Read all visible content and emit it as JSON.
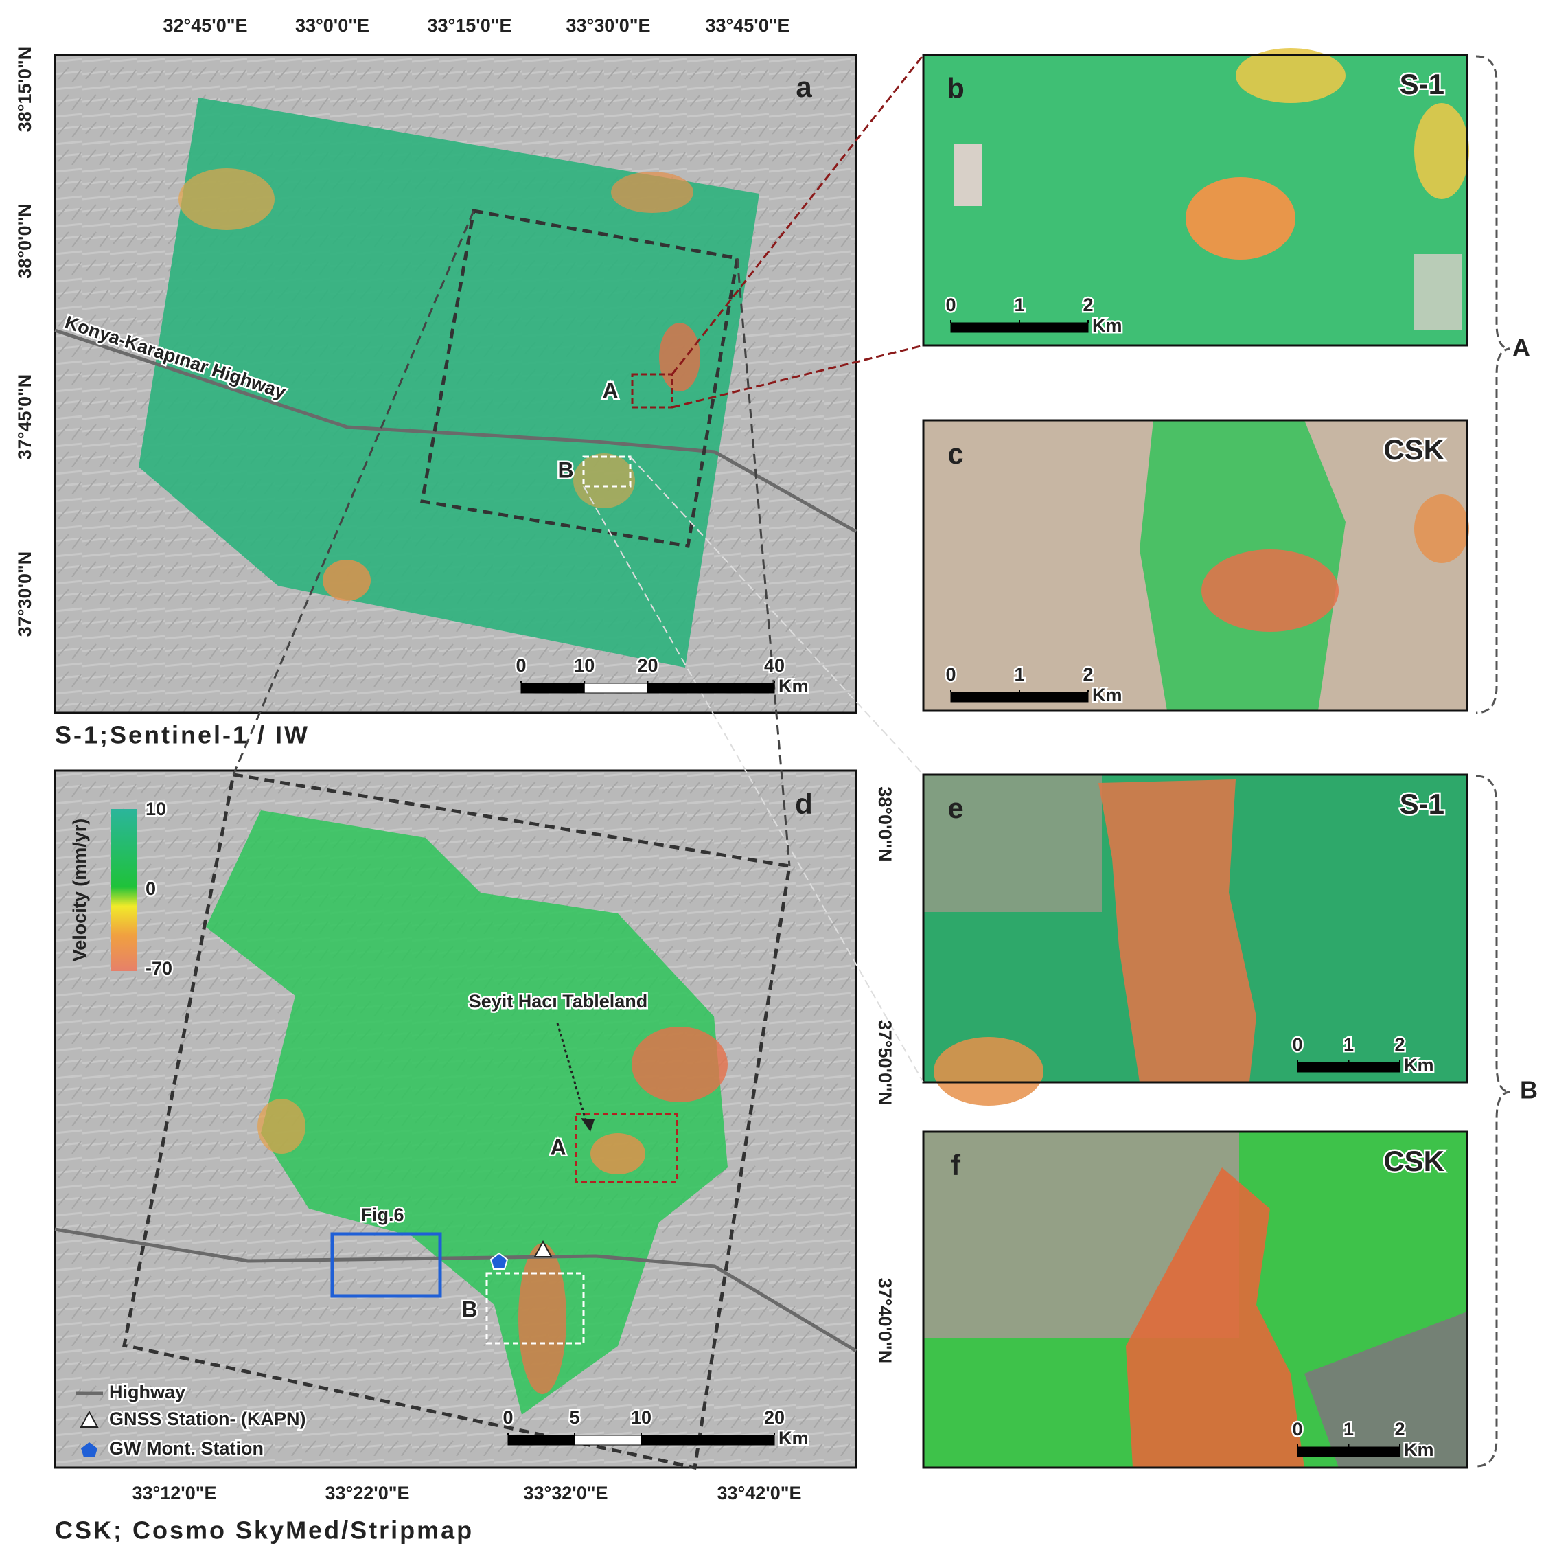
{
  "panel_a": {
    "letter": "a",
    "lon_labels": [
      "32°45'0\"E",
      "33°0'0\"E",
      "33°15'0\"E",
      "33°30'0\"E",
      "33°45'0\"E"
    ],
    "lat_labels": [
      "38°15'0\"N",
      "38°0'0\"N",
      "37°45'0\"N",
      "37°30'0\"N"
    ],
    "highway_label": "Konya-Karapınar Highway",
    "box_labels": [
      "A",
      "B"
    ],
    "scale": {
      "ticks": [
        0,
        10,
        20,
        40
      ],
      "unit": "Km"
    },
    "caption": "S-1;Sentinel-1 / IW"
  },
  "panel_b": {
    "letter": "b",
    "sensor": "S-1",
    "scale": {
      "ticks": [
        0,
        1,
        2
      ],
      "unit": "Km"
    }
  },
  "panel_c": {
    "letter": "c",
    "sensor": "CSK",
    "scale": {
      "ticks": [
        0,
        1,
        2
      ],
      "unit": "Km"
    }
  },
  "panel_d": {
    "letter": "d",
    "colorbar": {
      "title": "Velocity (mm/yr)",
      "ticks": [
        10,
        0,
        -70
      ]
    },
    "annotation": "Seyit Hacı Tableland",
    "box_labels": [
      "A",
      "B"
    ],
    "figure_ref": "Fig.6",
    "legend": [
      "Highway",
      "GNSS Station- (KAPN)",
      "GW Mont. Station"
    ],
    "scale": {
      "ticks": [
        0,
        5,
        10,
        20
      ],
      "unit": "Km"
    },
    "lon_labels": [
      "33°12'0\"E",
      "33°22'0\"E",
      "33°32'0\"E",
      "33°42'0\"E"
    ],
    "lat_labels": [
      "38°0'0\"N",
      "37°50'0\"N",
      "37°40'0\"N"
    ],
    "caption": "CSK; Cosmo SkyMed/Stripmap"
  },
  "panel_e": {
    "letter": "e",
    "sensor": "S-1",
    "scale": {
      "ticks": [
        0,
        1,
        2
      ],
      "unit": "Km"
    }
  },
  "panel_f": {
    "letter": "f",
    "sensor": "CSK",
    "scale": {
      "ticks": [
        0,
        1,
        2
      ],
      "unit": "Km"
    }
  },
  "group_labels": [
    "A",
    "B"
  ]
}
